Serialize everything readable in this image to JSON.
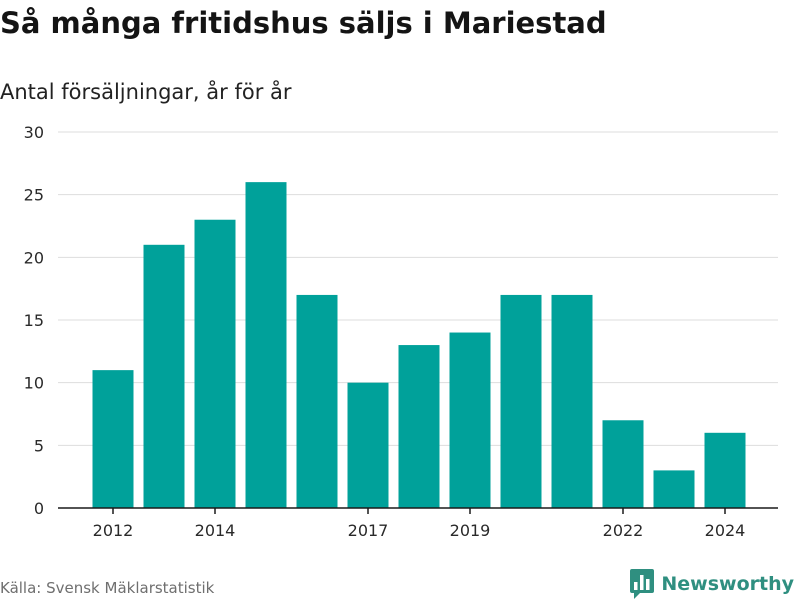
{
  "title": "Så många fritidshus säljs i Mariestad",
  "subtitle": "Antal försäljningar, år för år",
  "source": "Källa: Svensk Mäklarstatistik",
  "brand": {
    "name": "Newsworthy",
    "icon": "bar-chart-speech-bubble-icon",
    "color": "#2f8f80"
  },
  "colors": {
    "bar": "#00a19a",
    "grid": "#dddddd",
    "axis": "#1a1a1a"
  },
  "chart_data": {
    "type": "bar",
    "categories": [
      "2012",
      "2013",
      "2014",
      "2015",
      "2016",
      "2017",
      "2018",
      "2019",
      "2020",
      "2021",
      "2022",
      "2023",
      "2024"
    ],
    "values": [
      11,
      21,
      23,
      26,
      17,
      10,
      13,
      14,
      17,
      17,
      7,
      3,
      6
    ],
    "x_tick_labels": [
      "2012",
      "2014",
      "2017",
      "2019",
      "2022",
      "2024"
    ],
    "y_ticks": [
      0,
      5,
      10,
      15,
      20,
      25,
      30
    ],
    "ylim": [
      0,
      30
    ],
    "xlabel": "",
    "ylabel": "",
    "grid": true,
    "legend": false
  }
}
